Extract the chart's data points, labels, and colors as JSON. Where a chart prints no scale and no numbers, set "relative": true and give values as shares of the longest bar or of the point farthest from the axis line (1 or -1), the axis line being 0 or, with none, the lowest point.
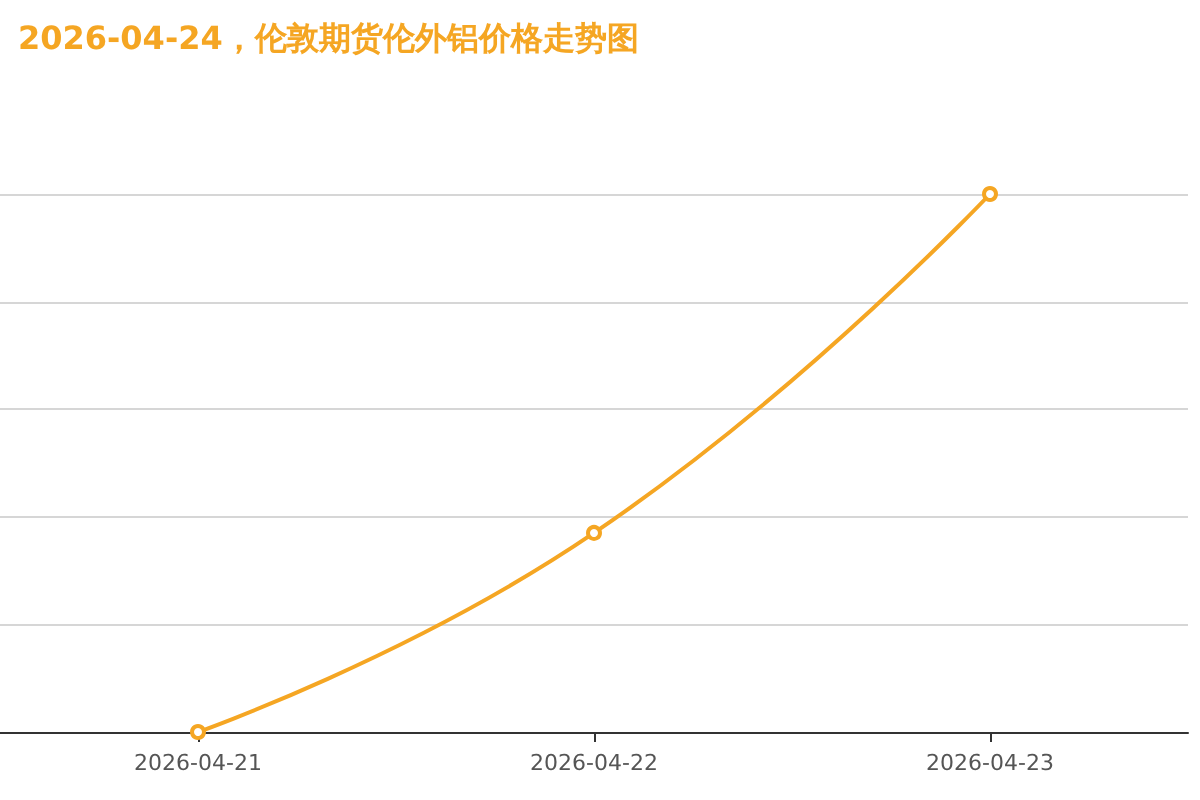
{
  "chart_data": {
    "type": "line",
    "title": "2026-04-24，伦敦期货伦外铝价格走势图",
    "categories": [
      "2026-04-21",
      "2026-04-22",
      "2026-04-23"
    ],
    "values": [
      0,
      0.37,
      1
    ],
    "color": "#f5a623",
    "relative": true,
    "grid": "y",
    "marker": "circle",
    "line_style": "solid"
  }
}
